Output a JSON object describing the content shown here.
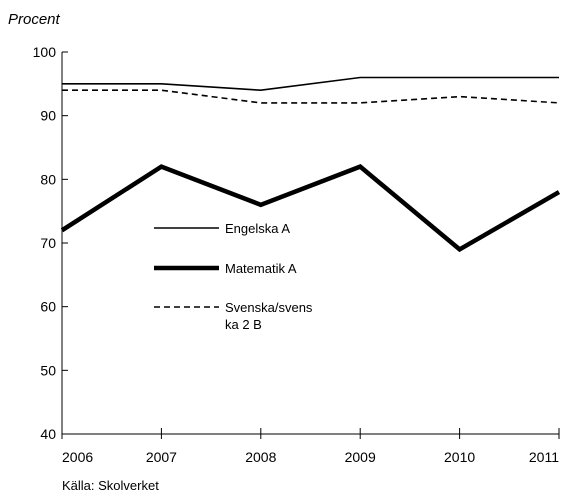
{
  "chart_data": {
    "type": "line",
    "title": "",
    "ylabel": "Procent",
    "xlabel": "",
    "x": [
      2006,
      2007,
      2008,
      2009,
      2010,
      2011
    ],
    "ylim": [
      40,
      100
    ],
    "xlim": [
      2006,
      2011
    ],
    "yticks": [
      40,
      50,
      60,
      70,
      80,
      90,
      100
    ],
    "xticks": [
      "2006",
      "2007",
      "2008",
      "2009",
      "2010",
      "2011"
    ],
    "grid": false,
    "legend_position": "left-center, inside plot",
    "series": [
      {
        "name": "Engelska A",
        "legend_lines": [
          "Engelska A"
        ],
        "style": "solid-thin",
        "color": "#000000",
        "values": [
          95,
          95,
          94,
          96,
          96,
          96
        ]
      },
      {
        "name": "Matematik A",
        "legend_lines": [
          "Matematik A"
        ],
        "style": "solid-thick",
        "color": "#000000",
        "values": [
          72,
          82,
          76,
          82,
          69,
          78
        ]
      },
      {
        "name": "Svenska/svenska 2 B",
        "legend_lines": [
          "Svenska/svens",
          "ka 2 B"
        ],
        "style": "dashed",
        "color": "#000000",
        "values": [
          94,
          94,
          92,
          92,
          93,
          92
        ]
      }
    ],
    "source": "Källa: Skolverket"
  }
}
